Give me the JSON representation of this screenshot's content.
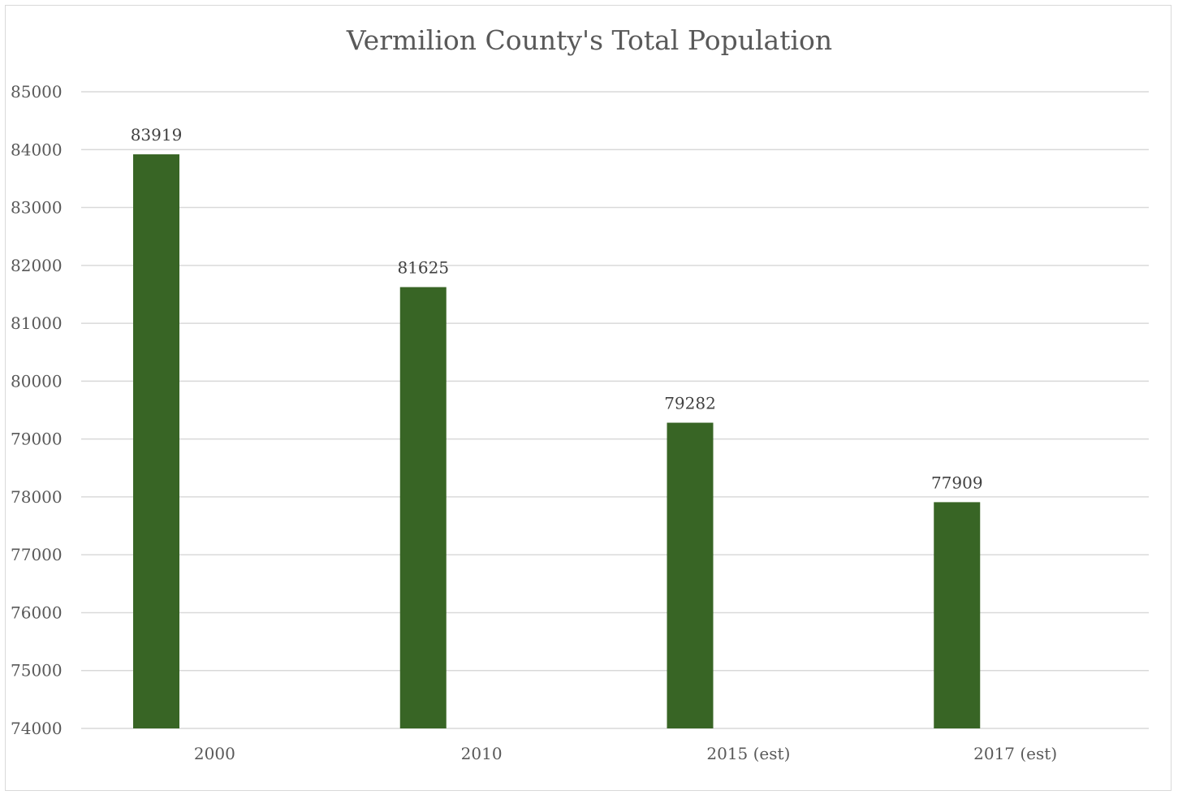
{
  "chart_data": {
    "type": "bar",
    "title": "Vermilion County's Total Population",
    "categories": [
      "2000",
      "2010",
      "2015 (est)",
      "2017 (est)"
    ],
    "values": [
      83919,
      81625,
      79282,
      77909
    ],
    "data_labels": [
      "83919",
      "81625",
      "79282",
      "77909"
    ],
    "ylim": [
      74000,
      85000
    ],
    "y_ticks": [
      "74000",
      "75000",
      "76000",
      "77000",
      "78000",
      "79000",
      "80000",
      "81000",
      "82000",
      "83000",
      "84000",
      "85000"
    ],
    "xlabel": "",
    "ylabel": "",
    "grid": true,
    "legend": "none",
    "bar_color": "#386525"
  }
}
